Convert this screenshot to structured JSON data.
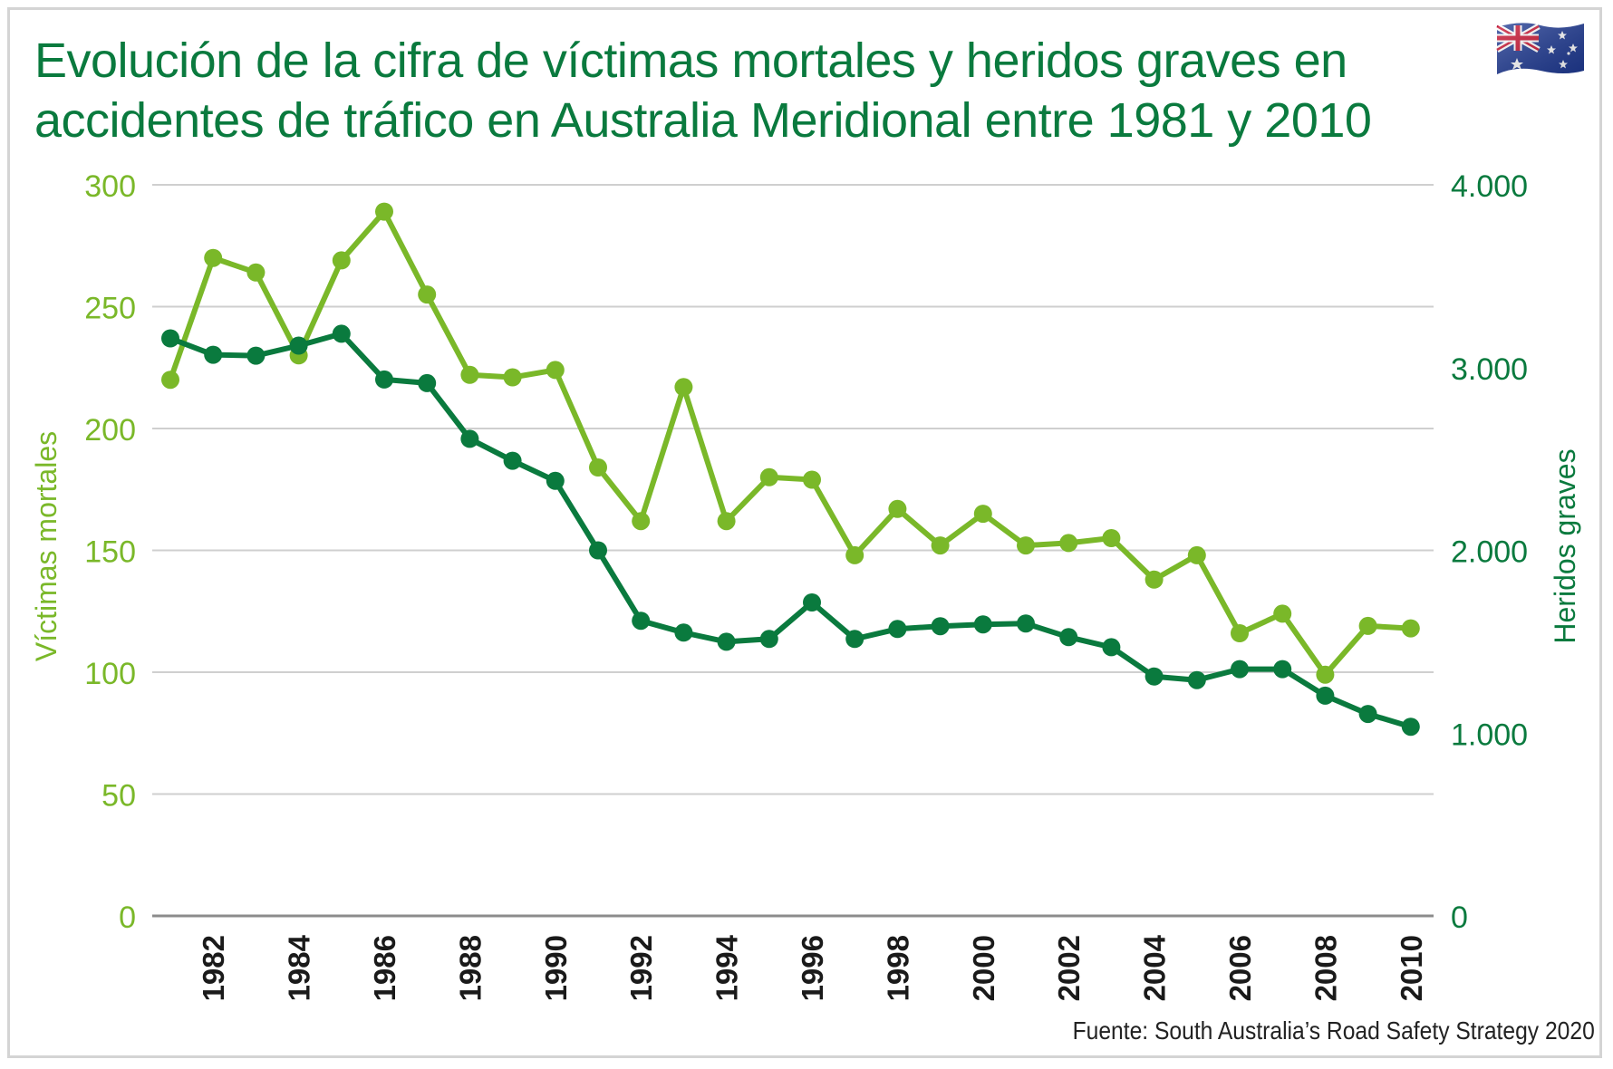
{
  "title": "Evolución de la cifra de víctimas mortales y heridos graves en accidentes de tráfico en Australia Meridional entre 1981 y 2010",
  "source": "Fuente: South Australia’s Road Safety Strategy 2020",
  "colors": {
    "title": "#0a7a3e",
    "victimas": "#7ab829",
    "heridos": "#0a7a3e",
    "grid": "#cfcfcf",
    "axis": "#8c8c8c"
  },
  "chart_data": {
    "type": "line",
    "x": [
      1981,
      1982,
      1983,
      1984,
      1985,
      1986,
      1987,
      1988,
      1989,
      1990,
      1991,
      1992,
      1993,
      1994,
      1995,
      1996,
      1997,
      1998,
      1999,
      2000,
      2001,
      2002,
      2003,
      2004,
      2005,
      2006,
      2007,
      2008,
      2009,
      2010
    ],
    "x_tick_labels": [
      "1982",
      "1984",
      "1986",
      "1988",
      "1990",
      "1992",
      "1994",
      "1996",
      "1998",
      "2000",
      "2002",
      "2004",
      "2006",
      "2008",
      "2010"
    ],
    "y_left_label": "Víctimas mortales",
    "y_left_range": [
      0,
      300
    ],
    "y_left_ticks": [
      "0",
      "50",
      "100",
      "150",
      "200",
      "250",
      "300"
    ],
    "y_right_label": "Heridos graves",
    "y_right_range": [
      0,
      4000
    ],
    "y_right_ticks": [
      "0",
      "1.000",
      "2.000",
      "3.000",
      "4.000"
    ],
    "grid": true,
    "series": [
      {
        "name": "Víctimas mortales",
        "axis": "left",
        "color": "#7ab829",
        "values": [
          220,
          270,
          264,
          230,
          269,
          289,
          255,
          222,
          221,
          224,
          184,
          162,
          217,
          162,
          180,
          179,
          148,
          167,
          152,
          165,
          152,
          153,
          155,
          138,
          148,
          116,
          124,
          99,
          119,
          118
        ]
      },
      {
        "name": "Heridos graves",
        "axis": "right",
        "color": "#0a7a3e",
        "values": [
          3160,
          3070,
          3065,
          3120,
          3185,
          2935,
          2915,
          2610,
          2490,
          2380,
          2000,
          1615,
          1550,
          1500,
          1515,
          1715,
          1515,
          1570,
          1585,
          1595,
          1600,
          1525,
          1470,
          1310,
          1290,
          1350,
          1350,
          1205,
          1105,
          1035
        ]
      }
    ]
  }
}
